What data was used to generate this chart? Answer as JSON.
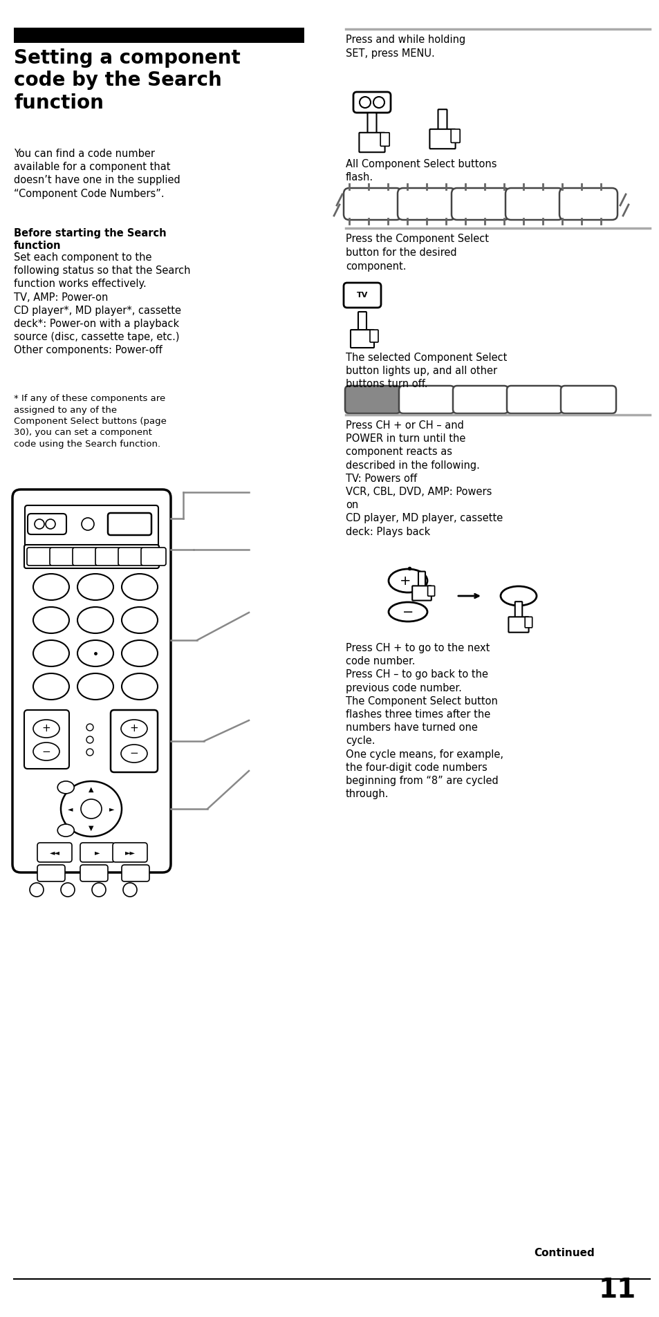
{
  "bg_color": "#ffffff",
  "title_bar_color": "#000000",
  "page_width": 9.54,
  "page_height": 19.05,
  "main_title": "Setting a component\ncode by the Search\nfunction",
  "para1": "You can find a code number\navailable for a component that\ndoesn’t have one in the supplied\n“Component Code Numbers”.",
  "subtitle1": "Before starting the Search\nfunction",
  "para2": "Set each component to the\nfollowing status so that the Search\nfunction works effectively.\nTV, AMP: Power-on\nCD player*, MD player*, cassette\ndeck*: Power-on with a playback\nsource (disc, cassette tape, etc.)\nOther components: Power-off",
  "footnote": "* If any of these components are\nassigned to any of the\nComponent Select buttons (page\n30), you can set a component\ncode using the Search function.",
  "right_text1": "Press and while holding\nSET, press MENU.",
  "right_caption1": "All Component Select buttons\nflash.",
  "right_text2": "Press the Component Select\nbutton for the desired\ncomponent.",
  "right_caption2": "The selected Component Select\nbutton lights up, and all other\nbuttons turn off.",
  "right_text3": "Press CH + or CH – and\nPOWER in turn until the\ncomponent reacts as\ndescribed in the following.\nTV: Powers off\nVCR, CBL, DVD, AMP: Powers\non\nCD player, MD player, cassette\ndeck: Plays back",
  "right_text4": "Press CH + to go to the next\ncode number.\nPress CH – to go back to the\nprevious code number.\nThe Component Select button\nflashes three times after the\nnumbers have turned one\ncycle.\nOne cycle means, for example,\nthe four-digit code numbers\nbeginning from “8” are cycled\nthrough.",
  "continued_text": "Continued",
  "page_number": "11",
  "gray_line_color": "#aaaaaa",
  "text_color": "#000000"
}
